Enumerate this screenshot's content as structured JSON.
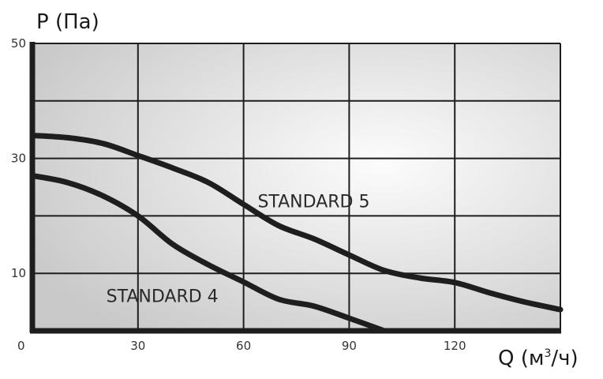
{
  "chart_data": {
    "type": "line",
    "ylabel": "P (Па)",
    "xlabel_main": "Q (м",
    "xlabel_sup": "3",
    "xlabel_tail": "/ч)",
    "xlim": [
      0,
      150
    ],
    "ylim": [
      0,
      50
    ],
    "x_ticks": [
      0,
      30,
      60,
      90,
      120
    ],
    "y_ticks": [
      10,
      30,
      50
    ],
    "grid": true,
    "series": [
      {
        "name": "STANDARD 5",
        "points": [
          [
            0,
            34
          ],
          [
            10,
            33.6
          ],
          [
            20,
            32.6
          ],
          [
            30,
            30.5
          ],
          [
            40,
            28.3
          ],
          [
            50,
            25.8
          ],
          [
            60,
            22
          ],
          [
            70,
            18.3
          ],
          [
            80,
            16
          ],
          [
            90,
            13.2
          ],
          [
            100,
            10.5
          ],
          [
            110,
            9.2
          ],
          [
            120,
            8.4
          ],
          [
            130,
            6.6
          ],
          [
            140,
            5
          ],
          [
            150,
            3.7
          ]
        ]
      },
      {
        "name": "STANDARD 4",
        "points": [
          [
            0,
            27
          ],
          [
            10,
            25.8
          ],
          [
            20,
            23.5
          ],
          [
            30,
            20
          ],
          [
            40,
            15
          ],
          [
            50,
            11.5
          ],
          [
            60,
            8.5
          ],
          [
            70,
            5.5
          ],
          [
            80,
            4.3
          ],
          [
            90,
            2.2
          ],
          [
            100,
            0
          ]
        ]
      }
    ],
    "label_positions": [
      {
        "series": "STANDARD 5",
        "x": 64,
        "y": 21.5
      },
      {
        "series": "STANDARD 4",
        "x": 21,
        "y": 5
      }
    ],
    "colors": {
      "line": "#1e1e1e",
      "grid": "#1e1e1e",
      "plot_bg_light": "#fcfcfc",
      "plot_bg_dark": "#c9c9c9"
    }
  }
}
